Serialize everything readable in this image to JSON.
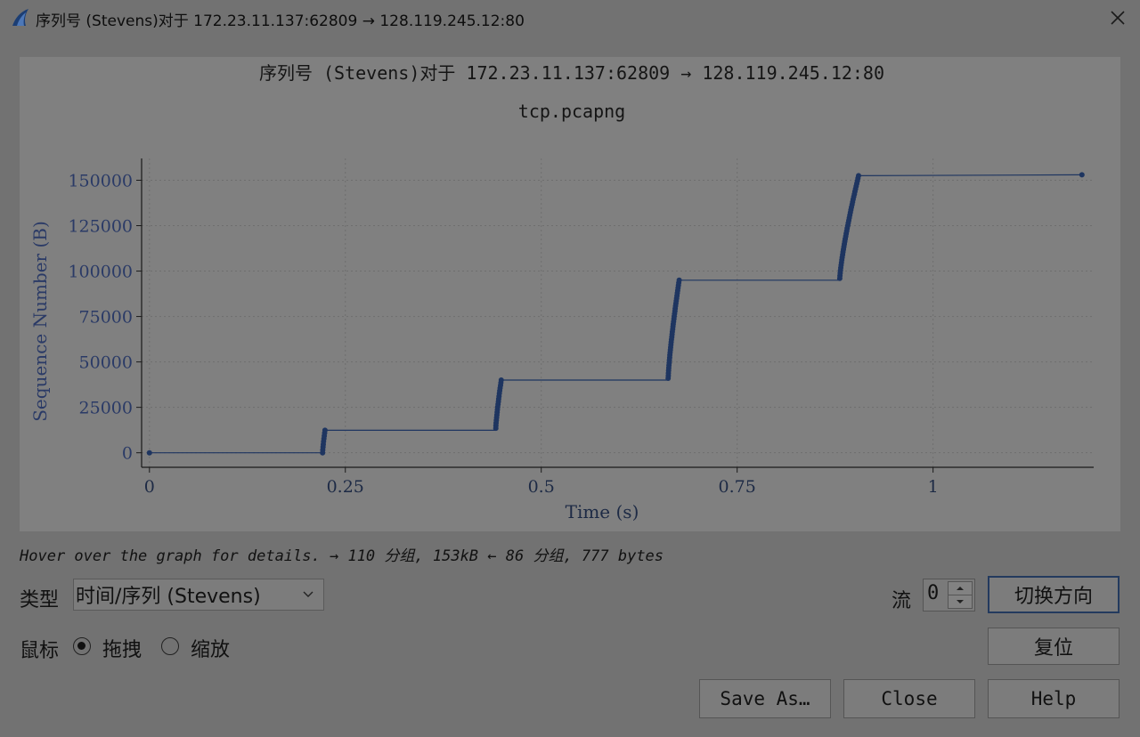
{
  "window": {
    "title": "序列号 (Stevens)对于 172.23.11.137:62809 → 128.119.245.12:80"
  },
  "chart_data": {
    "type": "scatter",
    "title": "序列号 (Stevens)对于 172.23.11.137:62809 → 128.119.245.12:80",
    "subtitle": "tcp.pcapng",
    "xlabel": "Time (s)",
    "ylabel": "Sequence Number (B)",
    "xlim": [
      -0.01,
      1.205
    ],
    "ylim": [
      -8000,
      162000
    ],
    "x_ticks": [
      0,
      0.25,
      0.5,
      0.75,
      1
    ],
    "x_tick_labels": [
      "0",
      "0.25",
      "0.5",
      "0.75",
      "1"
    ],
    "y_ticks": [
      0,
      25000,
      50000,
      75000,
      100000,
      125000,
      150000
    ],
    "y_tick_labels": [
      "0",
      "25000",
      "50000",
      "75000",
      "100000",
      "125000",
      "150000"
    ],
    "grid": true,
    "series_color": "#1e3560",
    "bursts": [
      {
        "t0": 0.0,
        "t1": 0.0,
        "y0": 0,
        "y1": 0
      },
      {
        "t0": 0.221,
        "t1": 0.224,
        "y0": 0,
        "y1": 12400
      },
      {
        "t0": 0.442,
        "t1": 0.449,
        "y0": 13500,
        "y1": 40000
      },
      {
        "t0": 0.662,
        "t1": 0.676,
        "y0": 41000,
        "y1": 95000
      },
      {
        "t0": 0.881,
        "t1": 0.905,
        "y0": 96000,
        "y1": 152500
      },
      {
        "t0": 1.19,
        "t1": 1.19,
        "y0": 153000,
        "y1": 153000
      }
    ],
    "steps": [
      {
        "x": 0.0,
        "y": 0
      },
      {
        "x": 0.221,
        "y": 0
      },
      {
        "x": 0.224,
        "y": 12400
      },
      {
        "x": 0.442,
        "y": 12400
      },
      {
        "x": 0.449,
        "y": 40000
      },
      {
        "x": 0.662,
        "y": 40000
      },
      {
        "x": 0.676,
        "y": 95000
      },
      {
        "x": 0.881,
        "y": 95000
      },
      {
        "x": 0.905,
        "y": 152500
      },
      {
        "x": 1.19,
        "y": 153000
      }
    ]
  },
  "status_text": "Hover over the graph for details. → 110 分组, 153kB ← 86 分组, 777 bytes",
  "controls": {
    "type_label": "类型",
    "type_value": "时间/序列 (Stevens)",
    "mouse_label": "鼠标",
    "drag_label": "拖拽",
    "zoom_label": "缩放",
    "stream_label": "流",
    "stream_value": "0",
    "switch_direction": "切换方向",
    "reset": "复位",
    "save_as": "Save As…",
    "close": "Close",
    "help": "Help"
  }
}
